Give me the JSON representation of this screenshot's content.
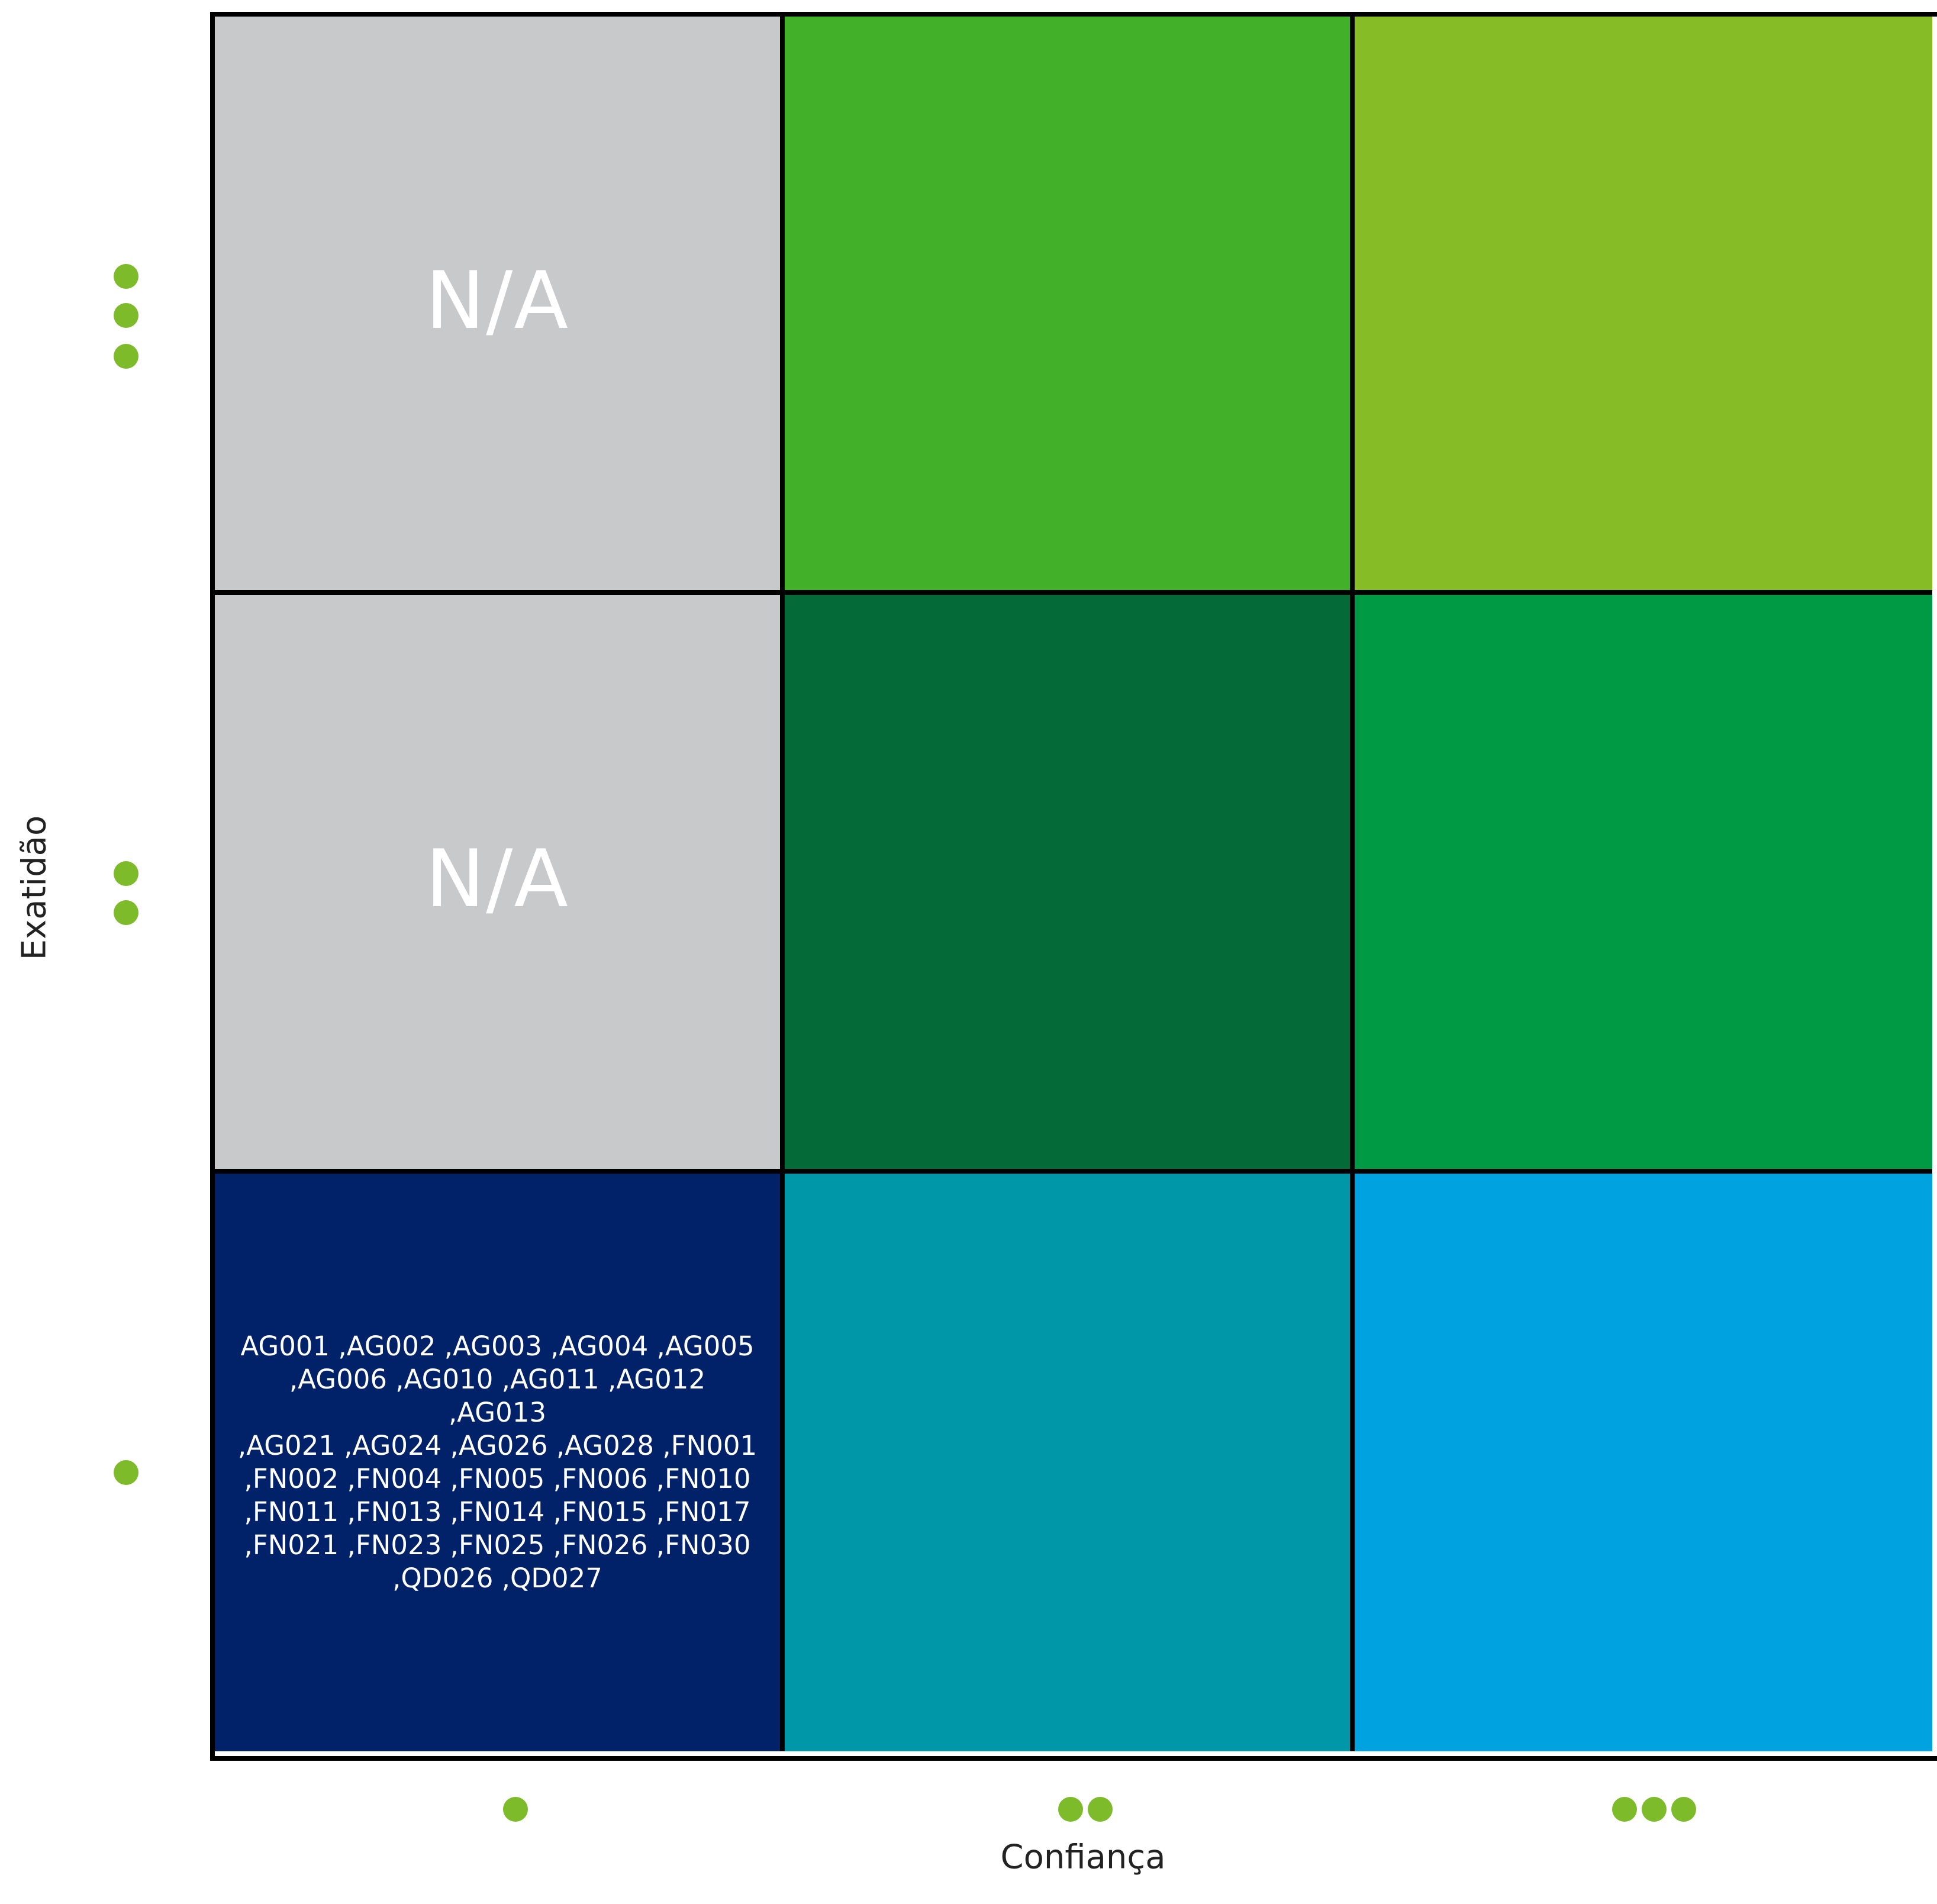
{
  "matrix": {
    "cells": [
      {
        "text": "N/A",
        "color": "#c8c9cb"
      },
      {
        "text": "",
        "color": "#43b02a"
      },
      {
        "text": "",
        "color": "#86bc25"
      },
      {
        "text": "N/A",
        "color": "#c8c9cb"
      },
      {
        "text": "",
        "color": "#046a38"
      },
      {
        "text": "",
        "color": "#009a44"
      },
      {
        "text": "AG001 ,AG002 ,AG003 ,AG004 ,AG005\n,AG006 ,AG010 ,AG011 ,AG012 ,AG013\n,AG021 ,AG024 ,AG026 ,AG028 ,FN001\n,FN002 ,FN004 ,FN005 ,FN006 ,FN010\n,FN011 ,FN013 ,FN014 ,FN015 ,FN017\n,FN021 ,FN023 ,FN025 ,FN026 ,FN030\n,QD026 ,QD027",
        "color": "#012169"
      },
      {
        "text": "",
        "color": "#0097a9"
      },
      {
        "text": "",
        "color": "#00a3e0"
      }
    ]
  },
  "axes": {
    "x_title": "Confiança",
    "y_title": "Exatidão",
    "x_levels": [
      1,
      2,
      3
    ],
    "y_levels": [
      3,
      2,
      1
    ],
    "marker_color": "#7dbb2a"
  }
}
